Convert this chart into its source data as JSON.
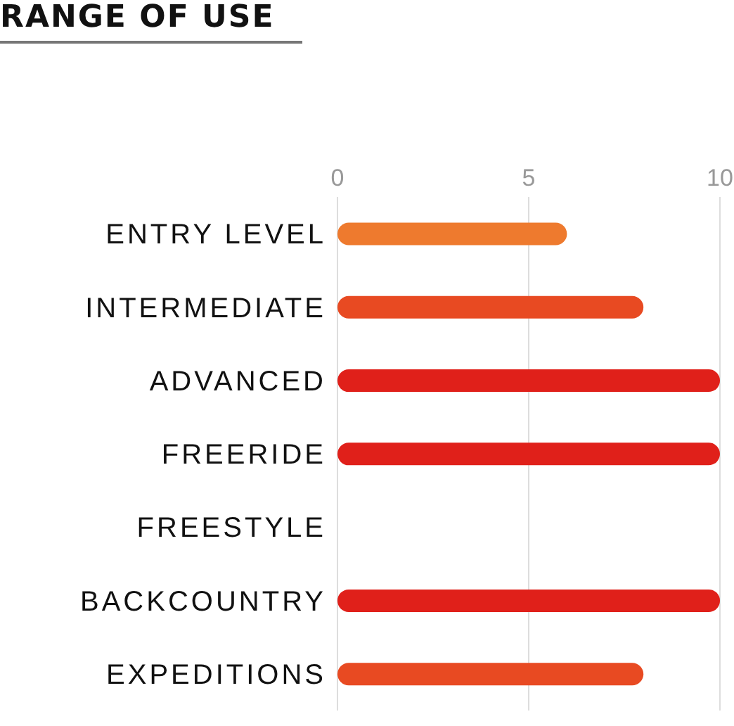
{
  "chart_data": {
    "type": "bar",
    "orientation": "horizontal",
    "title": "RANGE OF USE",
    "categories": [
      "ENTRY LEVEL",
      "INTERMEDIATE",
      "ADVANCED",
      "FREERIDE",
      "FREESTYLE",
      "BACKCOUNTRY",
      "EXPEDITIONS"
    ],
    "values": [
      6,
      8,
      10,
      10,
      0,
      10,
      8
    ],
    "colors": [
      "#ee7a2e",
      "#e84a22",
      "#e0201a",
      "#e0201a",
      "#f5e04a",
      "#e0201a",
      "#e84a22"
    ],
    "xlim": [
      0,
      10
    ],
    "xticks": [
      0,
      5,
      10
    ],
    "grid": "x"
  }
}
